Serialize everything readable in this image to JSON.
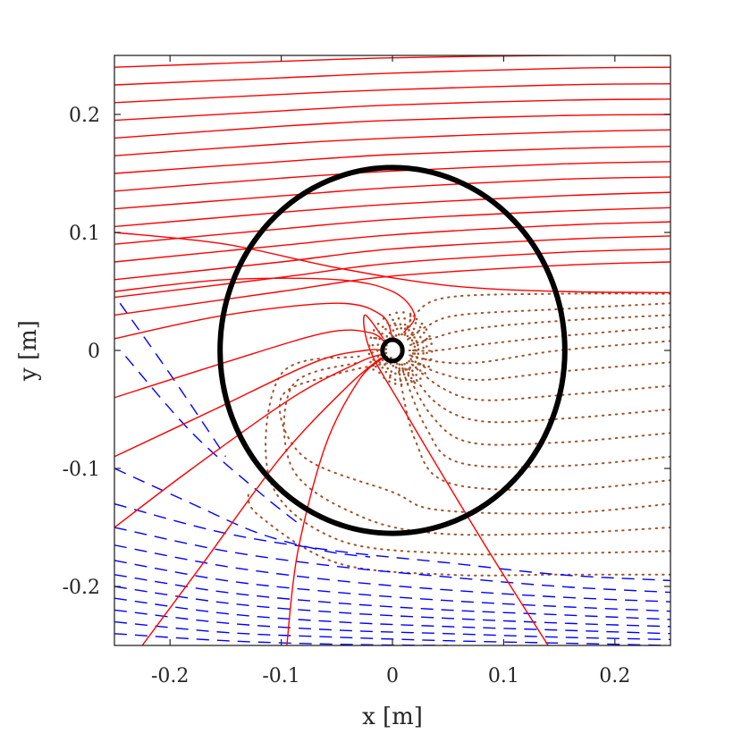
{
  "chart_data": {
    "type": "line",
    "title": "",
    "xlabel": "x [m]",
    "ylabel": "y [m]",
    "xlim": [
      -0.25,
      0.25
    ],
    "ylim": [
      -0.25,
      0.25
    ],
    "xticks": [
      -0.2,
      -0.1,
      0,
      0.1,
      0.2
    ],
    "yticks": [
      -0.2,
      -0.1,
      0,
      0.1,
      0.2
    ],
    "xtick_labels": [
      "-0.2",
      "-0.1",
      "0",
      "0.1",
      "0.2"
    ],
    "ytick_labels": [
      "-0.2",
      "-0.1",
      "0",
      "0.1",
      "0.2"
    ],
    "grid": false,
    "box": true,
    "colors": {
      "red_lines": "#ff0000",
      "blue_dashed": "#0000ff",
      "brown_dotted": "#a0522d",
      "circle": "#000000",
      "axes": "#262626"
    },
    "circles": [
      {
        "cx": 0.0,
        "cy": 0.0,
        "r": 0.155
      },
      {
        "cx": 0.0,
        "cy": 0.0,
        "r": 0.009
      }
    ],
    "red_lines": [
      {
        "x": [
          -0.25,
          -0.1,
          0.0,
          0.15,
          0.25
        ],
        "y": [
          0.24,
          0.245,
          0.248,
          0.25,
          0.25
        ]
      },
      {
        "x": [
          -0.25,
          -0.1,
          0.0,
          0.15,
          0.25
        ],
        "y": [
          0.225,
          0.231,
          0.235,
          0.239,
          0.24
        ]
      },
      {
        "x": [
          -0.25,
          -0.1,
          0.0,
          0.15,
          0.25
        ],
        "y": [
          0.21,
          0.217,
          0.221,
          0.225,
          0.226
        ]
      },
      {
        "x": [
          -0.25,
          -0.1,
          0.0,
          0.15,
          0.25
        ],
        "y": [
          0.195,
          0.203,
          0.208,
          0.212,
          0.213
        ]
      },
      {
        "x": [
          -0.25,
          -0.1,
          0.0,
          0.15,
          0.25
        ],
        "y": [
          0.18,
          0.19,
          0.195,
          0.199,
          0.2
        ]
      },
      {
        "x": [
          -0.25,
          -0.1,
          0.0,
          0.15,
          0.25
        ],
        "y": [
          0.165,
          0.175,
          0.18,
          0.185,
          0.187
        ]
      },
      {
        "x": [
          -0.25,
          -0.1,
          0.0,
          0.15,
          0.25
        ],
        "y": [
          0.15,
          0.16,
          0.166,
          0.171,
          0.173
        ]
      },
      {
        "x": [
          -0.25,
          -0.1,
          0.0,
          0.15,
          0.25
        ],
        "y": [
          0.135,
          0.146,
          0.152,
          0.158,
          0.16
        ]
      },
      {
        "x": [
          -0.25,
          -0.1,
          0.0,
          0.15,
          0.25
        ],
        "y": [
          0.12,
          0.131,
          0.138,
          0.145,
          0.147
        ]
      },
      {
        "x": [
          -0.25,
          -0.1,
          0.0,
          0.15,
          0.25
        ],
        "y": [
          0.105,
          0.117,
          0.124,
          0.131,
          0.134
        ]
      },
      {
        "x": [
          -0.25,
          -0.1,
          0.0,
          0.15,
          0.25
        ],
        "y": [
          0.09,
          0.103,
          0.111,
          0.118,
          0.121
        ]
      },
      {
        "x": [
          -0.25,
          -0.1,
          0.0,
          0.15,
          0.25
        ],
        "y": [
          0.075,
          0.089,
          0.098,
          0.106,
          0.109
        ]
      },
      {
        "x": [
          -0.25,
          -0.1,
          0.0,
          0.15,
          0.25
        ],
        "y": [
          0.06,
          0.075,
          0.086,
          0.094,
          0.097
        ]
      },
      {
        "x": [
          -0.25,
          -0.1,
          0.0,
          0.15,
          0.25
        ],
        "y": [
          0.045,
          0.062,
          0.074,
          0.083,
          0.086
        ]
      },
      {
        "x": [
          -0.25,
          -0.1,
          0.0,
          0.15,
          0.25
        ],
        "y": [
          0.03,
          0.05,
          0.063,
          0.072,
          0.075
        ]
      },
      {
        "x": [
          -0.25,
          -0.15,
          -0.05,
          0.05,
          0.15,
          0.25
        ],
        "y": [
          0.1,
          0.09,
          0.07,
          0.055,
          0.05,
          0.049
        ]
      },
      {
        "x": [
          -0.25,
          -0.15,
          -0.05,
          0.0,
          0.02,
          0.01
        ],
        "y": [
          0.05,
          0.06,
          0.06,
          0.05,
          0.03,
          0.015
        ]
      },
      {
        "x": [
          -0.25,
          -0.15,
          -0.05,
          -0.01,
          0.0
        ],
        "y": [
          0.01,
          0.03,
          0.04,
          0.03,
          0.01
        ]
      },
      {
        "x": [
          -0.25,
          -0.15,
          -0.06,
          -0.02,
          -0.005
        ],
        "y": [
          -0.04,
          -0.01,
          0.015,
          0.015,
          0.005
        ]
      },
      {
        "x": [
          -0.25,
          -0.16,
          -0.07,
          -0.025,
          -0.007
        ],
        "y": [
          -0.09,
          -0.05,
          -0.01,
          0.0,
          0.0
        ]
      },
      {
        "x": [
          -0.25,
          -0.18,
          -0.09,
          -0.03,
          -0.008
        ],
        "y": [
          -0.15,
          -0.1,
          -0.04,
          -0.01,
          -0.003
        ]
      },
      {
        "x": [
          -0.225,
          -0.17,
          -0.1,
          -0.04,
          -0.01
        ],
        "y": [
          -0.25,
          -0.18,
          -0.09,
          -0.03,
          -0.006
        ]
      },
      {
        "x": [
          -0.095,
          -0.085,
          -0.06,
          -0.03,
          -0.008
        ],
        "y": [
          -0.25,
          -0.17,
          -0.08,
          -0.025,
          -0.006
        ]
      },
      {
        "x": [
          0.14,
          0.08,
          0.01,
          -0.02,
          -0.025,
          -0.008
        ],
        "y": [
          -0.25,
          -0.16,
          -0.05,
          0.0,
          0.03,
          0.01
        ]
      }
    ],
    "blue_dashed": [
      {
        "x": [
          -0.245,
          -0.2,
          -0.15
        ],
        "y": [
          0.04,
          -0.02,
          -0.09
        ]
      },
      {
        "x": [
          -0.24,
          -0.18,
          -0.12,
          -0.08
        ],
        "y": [
          -0.005,
          -0.07,
          -0.12,
          -0.15
        ]
      },
      {
        "x": [
          -0.25,
          -0.18,
          -0.12,
          -0.06,
          -0.02
        ],
        "y": [
          -0.1,
          -0.13,
          -0.155,
          -0.17,
          -0.175
        ]
      },
      {
        "x": [
          -0.25,
          -0.15,
          -0.05,
          0.05,
          0.15,
          0.25
        ],
        "y": [
          -0.13,
          -0.155,
          -0.17,
          -0.18,
          -0.19,
          -0.195
        ]
      },
      {
        "x": [
          -0.25,
          -0.15,
          -0.05,
          0.05,
          0.15,
          0.25
        ],
        "y": [
          -0.15,
          -0.17,
          -0.183,
          -0.192,
          -0.2,
          -0.205
        ]
      },
      {
        "x": [
          -0.25,
          -0.15,
          -0.05,
          0.05,
          0.15,
          0.25
        ],
        "y": [
          -0.165,
          -0.183,
          -0.195,
          -0.203,
          -0.209,
          -0.213
        ]
      },
      {
        "x": [
          -0.25,
          -0.15,
          -0.05,
          0.05,
          0.15,
          0.25
        ],
        "y": [
          -0.178,
          -0.195,
          -0.205,
          -0.212,
          -0.217,
          -0.221
        ]
      },
      {
        "x": [
          -0.25,
          -0.15,
          -0.05,
          0.05,
          0.15,
          0.25
        ],
        "y": [
          -0.19,
          -0.205,
          -0.214,
          -0.22,
          -0.224,
          -0.228
        ]
      },
      {
        "x": [
          -0.25,
          -0.15,
          -0.05,
          0.05,
          0.15,
          0.25
        ],
        "y": [
          -0.2,
          -0.214,
          -0.222,
          -0.227,
          -0.231,
          -0.234
        ]
      },
      {
        "x": [
          -0.25,
          -0.15,
          -0.05,
          0.05,
          0.15,
          0.25
        ],
        "y": [
          -0.21,
          -0.223,
          -0.23,
          -0.234,
          -0.237,
          -0.24
        ]
      },
      {
        "x": [
          -0.25,
          -0.15,
          -0.05,
          0.05,
          0.15,
          0.25
        ],
        "y": [
          -0.22,
          -0.231,
          -0.237,
          -0.24,
          -0.243,
          -0.245
        ]
      },
      {
        "x": [
          -0.25,
          -0.15,
          -0.05,
          0.05,
          0.15,
          0.25
        ],
        "y": [
          -0.23,
          -0.239,
          -0.243,
          -0.246,
          -0.248,
          -0.25
        ]
      },
      {
        "x": [
          -0.25,
          -0.15,
          -0.05,
          0.05
        ],
        "y": [
          -0.24,
          -0.246,
          -0.249,
          -0.25
        ]
      }
    ],
    "brown_dotted": [
      {
        "x": [
          0.25,
          0.15,
          0.05,
          0.02,
          0.01
        ],
        "y": [
          0.048,
          0.048,
          0.045,
          0.03,
          0.01
        ]
      },
      {
        "x": [
          0.25,
          0.15,
          0.06,
          0.03,
          0.012
        ],
        "y": [
          0.04,
          0.035,
          0.03,
          0.02,
          0.008
        ]
      },
      {
        "x": [
          0.25,
          0.15,
          0.07,
          0.035,
          0.014
        ],
        "y": [
          0.03,
          0.025,
          0.018,
          0.01,
          0.004
        ]
      },
      {
        "x": [
          0.25,
          0.15,
          0.08,
          0.04,
          0.015
        ],
        "y": [
          0.02,
          0.012,
          0.005,
          0.0,
          0.0
        ]
      },
      {
        "x": [
          0.25,
          0.15,
          0.08,
          0.045,
          0.015
        ],
        "y": [
          0.008,
          0.0,
          -0.01,
          -0.01,
          -0.004
        ]
      },
      {
        "x": [
          0.25,
          0.15,
          0.08,
          0.045,
          0.015
        ],
        "y": [
          -0.01,
          -0.018,
          -0.025,
          -0.02,
          -0.008
        ]
      },
      {
        "x": [
          0.25,
          0.15,
          0.08,
          0.045,
          0.015
        ],
        "y": [
          -0.03,
          -0.038,
          -0.042,
          -0.032,
          -0.01
        ]
      },
      {
        "x": [
          0.25,
          0.15,
          0.08,
          0.04,
          0.012
        ],
        "y": [
          -0.05,
          -0.058,
          -0.06,
          -0.045,
          -0.012
        ]
      },
      {
        "x": [
          0.25,
          0.15,
          0.07,
          0.035,
          0.01
        ],
        "y": [
          -0.07,
          -0.078,
          -0.078,
          -0.055,
          -0.013
        ]
      },
      {
        "x": [
          0.25,
          0.15,
          0.06,
          0.03,
          0.008
        ],
        "y": [
          -0.09,
          -0.098,
          -0.095,
          -0.065,
          -0.014
        ]
      },
      {
        "x": [
          0.25,
          0.15,
          0.05,
          0.02,
          0.005
        ],
        "y": [
          -0.11,
          -0.118,
          -0.112,
          -0.075,
          -0.015
        ]
      },
      {
        "x": [
          0.25,
          0.15,
          0.04,
          0.0,
          -0.08,
          -0.1,
          -0.05,
          0.0
        ],
        "y": [
          -0.13,
          -0.138,
          -0.135,
          -0.12,
          -0.09,
          -0.04,
          -0.02,
          -0.01
        ]
      },
      {
        "x": [
          0.25,
          0.15,
          0.04,
          -0.03,
          -0.09,
          -0.09,
          -0.03
        ],
        "y": [
          -0.15,
          -0.155,
          -0.155,
          -0.14,
          -0.1,
          -0.03,
          -0.01
        ]
      },
      {
        "x": [
          0.25,
          0.15,
          0.05,
          -0.05,
          -0.11,
          -0.1,
          -0.03
        ],
        "y": [
          -0.17,
          -0.172,
          -0.172,
          -0.16,
          -0.11,
          -0.02,
          -0.005
        ]
      },
      {
        "x": [
          0.25,
          0.15,
          0.05,
          -0.05,
          -0.12,
          -0.13
        ],
        "y": [
          -0.19,
          -0.19,
          -0.19,
          -0.18,
          -0.14,
          -0.12
        ]
      }
    ]
  }
}
